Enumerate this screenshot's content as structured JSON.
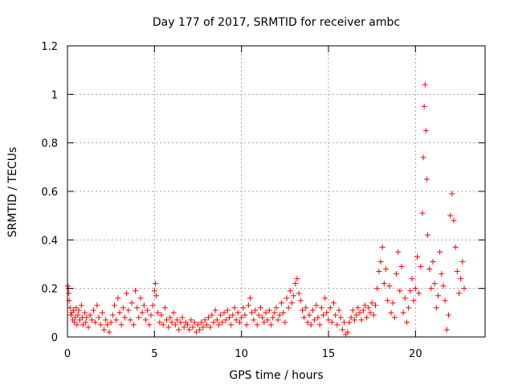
{
  "chart_data": {
    "type": "scatter",
    "title": "Day 177 of 2017, SRMTID for receiver ambc",
    "xlabel": "GPS time / hours",
    "ylabel": "SRMTID / TECUs",
    "xlim": [
      0,
      24
    ],
    "ylim": [
      0,
      1.2
    ],
    "grid": true,
    "marker": "+",
    "color": "#ff0000",
    "xticks": [
      0,
      5,
      10,
      15,
      20
    ],
    "xtick_labels": [
      "0",
      "5",
      "10",
      "15",
      "20"
    ],
    "yticks": [
      0,
      0.2,
      0.4,
      0.6,
      0.8,
      1,
      1.2
    ],
    "ytick_labels": [
      "0",
      "0.2",
      "0.4",
      "0.6",
      "0.8",
      "1",
      "1.2"
    ],
    "series": [
      {
        "name": "SRMTID",
        "points": [
          [
            0.02,
            0.21
          ],
          [
            0.05,
            0.2
          ],
          [
            0.08,
            0.18
          ],
          [
            0.1,
            0.15
          ],
          [
            0.15,
            0.12
          ],
          [
            0.2,
            0.09
          ],
          [
            0.25,
            0.1
          ],
          [
            0.3,
            0.07
          ],
          [
            0.35,
            0.11
          ],
          [
            0.4,
            0.06
          ],
          [
            0.45,
            0.08
          ],
          [
            0.5,
            0.12
          ],
          [
            0.55,
            0.05
          ],
          [
            0.6,
            0.09
          ],
          [
            0.65,
            0.11
          ],
          [
            0.7,
            0.07
          ],
          [
            0.8,
            0.13
          ],
          [
            0.85,
            0.08
          ],
          [
            0.9,
            0.05
          ],
          [
            1.0,
            0.1
          ],
          [
            1.05,
            0.06
          ],
          [
            1.1,
            0.08
          ],
          [
            1.2,
            0.04
          ],
          [
            1.3,
            0.09
          ],
          [
            1.4,
            0.07
          ],
          [
            1.5,
            0.11
          ],
          [
            1.6,
            0.06
          ],
          [
            1.7,
            0.13
          ],
          [
            1.8,
            0.08
          ],
          [
            1.9,
            0.05
          ],
          [
            2.0,
            0.1
          ],
          [
            2.1,
            0.03
          ],
          [
            2.2,
            0.07
          ],
          [
            2.3,
            0.05
          ],
          [
            2.4,
            0.02
          ],
          [
            2.5,
            0.06
          ],
          [
            2.6,
            0.09
          ],
          [
            2.7,
            0.13
          ],
          [
            2.8,
            0.07
          ],
          [
            2.9,
            0.16
          ],
          [
            3.0,
            0.1
          ],
          [
            3.1,
            0.05
          ],
          [
            3.2,
            0.12
          ],
          [
            3.3,
            0.08
          ],
          [
            3.4,
            0.18
          ],
          [
            3.5,
            0.11
          ],
          [
            3.6,
            0.07
          ],
          [
            3.7,
            0.14
          ],
          [
            3.8,
            0.05
          ],
          [
            3.9,
            0.19
          ],
          [
            4.0,
            0.12
          ],
          [
            4.1,
            0.08
          ],
          [
            4.2,
            0.16
          ],
          [
            4.3,
            0.1
          ],
          [
            4.4,
            0.13
          ],
          [
            4.5,
            0.07
          ],
          [
            4.6,
            0.11
          ],
          [
            4.7,
            0.05
          ],
          [
            4.8,
            0.09
          ],
          [
            4.9,
            0.13
          ],
          [
            5.0,
            0.19
          ],
          [
            5.05,
            0.22
          ],
          [
            5.1,
            0.17
          ],
          [
            5.2,
            0.1
          ],
          [
            5.3,
            0.06
          ],
          [
            5.4,
            0.09
          ],
          [
            5.5,
            0.05
          ],
          [
            5.6,
            0.12
          ],
          [
            5.7,
            0.07
          ],
          [
            5.8,
            0.04
          ],
          [
            5.9,
            0.08
          ],
          [
            6.0,
            0.06
          ],
          [
            6.1,
            0.1
          ],
          [
            6.2,
            0.05
          ],
          [
            6.3,
            0.07
          ],
          [
            6.4,
            0.03
          ],
          [
            6.5,
            0.06
          ],
          [
            6.6,
            0.08
          ],
          [
            6.7,
            0.04
          ],
          [
            6.8,
            0.06
          ],
          [
            6.9,
            0.05
          ],
          [
            7.0,
            0.03
          ],
          [
            7.1,
            0.07
          ],
          [
            7.2,
            0.04
          ],
          [
            7.3,
            0.06
          ],
          [
            7.4,
            0.02
          ],
          [
            7.5,
            0.05
          ],
          [
            7.6,
            0.03
          ],
          [
            7.7,
            0.06
          ],
          [
            7.8,
            0.04
          ],
          [
            7.9,
            0.07
          ],
          [
            8.0,
            0.05
          ],
          [
            8.1,
            0.08
          ],
          [
            8.2,
            0.04
          ],
          [
            8.3,
            0.09
          ],
          [
            8.4,
            0.06
          ],
          [
            8.5,
            0.11
          ],
          [
            8.6,
            0.07
          ],
          [
            8.7,
            0.05
          ],
          [
            8.8,
            0.09
          ],
          [
            8.9,
            0.06
          ],
          [
            9.0,
            0.1
          ],
          [
            9.1,
            0.07
          ],
          [
            9.2,
            0.11
          ],
          [
            9.3,
            0.08
          ],
          [
            9.4,
            0.05
          ],
          [
            9.5,
            0.09
          ],
          [
            9.6,
            0.12
          ],
          [
            9.7,
            0.07
          ],
          [
            9.8,
            0.1
          ],
          [
            9.9,
            0.06
          ],
          [
            10.0,
            0.08
          ],
          [
            10.1,
            0.12
          ],
          [
            10.2,
            0.09
          ],
          [
            10.3,
            0.05
          ],
          [
            10.4,
            0.13
          ],
          [
            10.5,
            0.16
          ],
          [
            10.6,
            0.1
          ],
          [
            10.7,
            0.07
          ],
          [
            10.8,
            0.11
          ],
          [
            10.9,
            0.05
          ],
          [
            11.0,
            0.09
          ],
          [
            11.1,
            0.12
          ],
          [
            11.2,
            0.08
          ],
          [
            11.3,
            0.06
          ],
          [
            11.4,
            0.1
          ],
          [
            11.5,
            0.07
          ],
          [
            11.6,
            0.11
          ],
          [
            11.7,
            0.05
          ],
          [
            11.8,
            0.08
          ],
          [
            11.9,
            0.1
          ],
          [
            12.0,
            0.12
          ],
          [
            12.1,
            0.07
          ],
          [
            12.2,
            0.09
          ],
          [
            12.3,
            0.14
          ],
          [
            12.4,
            0.1
          ],
          [
            12.5,
            0.06
          ],
          [
            12.6,
            0.16
          ],
          [
            12.7,
            0.12
          ],
          [
            12.8,
            0.19
          ],
          [
            12.9,
            0.14
          ],
          [
            13.0,
            0.17
          ],
          [
            13.1,
            0.22
          ],
          [
            13.2,
            0.24
          ],
          [
            13.3,
            0.18
          ],
          [
            13.4,
            0.15
          ],
          [
            13.5,
            0.11
          ],
          [
            13.6,
            0.08
          ],
          [
            13.7,
            0.12
          ],
          [
            13.8,
            0.06
          ],
          [
            13.9,
            0.09
          ],
          [
            14.0,
            0.05
          ],
          [
            14.1,
            0.11
          ],
          [
            14.2,
            0.07
          ],
          [
            14.3,
            0.13
          ],
          [
            14.4,
            0.08
          ],
          [
            14.5,
            0.05
          ],
          [
            14.6,
            0.12
          ],
          [
            14.7,
            0.09
          ],
          [
            14.8,
            0.16
          ],
          [
            14.9,
            0.1
          ],
          [
            15.0,
            0.07
          ],
          [
            15.1,
            0.12
          ],
          [
            15.2,
            0.06
          ],
          [
            15.3,
            0.14
          ],
          [
            15.4,
            0.09
          ],
          [
            15.5,
            0.05
          ],
          [
            15.6,
            0.11
          ],
          [
            15.7,
            0.08
          ],
          [
            15.8,
            0.03
          ],
          [
            15.9,
            0.06
          ],
          [
            16.0,
            0.01
          ],
          [
            16.1,
            0.02
          ],
          [
            16.2,
            0.06
          ],
          [
            16.3,
            0.08
          ],
          [
            16.4,
            0.11
          ],
          [
            16.5,
            0.07
          ],
          [
            16.6,
            0.09
          ],
          [
            16.7,
            0.12
          ],
          [
            16.8,
            0.1
          ],
          [
            16.9,
            0.07
          ],
          [
            17.0,
            0.11
          ],
          [
            17.1,
            0.13
          ],
          [
            17.2,
            0.08
          ],
          [
            17.3,
            0.12
          ],
          [
            17.4,
            0.1
          ],
          [
            17.5,
            0.14
          ],
          [
            17.6,
            0.09
          ],
          [
            17.7,
            0.13
          ],
          [
            17.8,
            0.2
          ],
          [
            17.9,
            0.27
          ],
          [
            18.0,
            0.31
          ],
          [
            18.1,
            0.37
          ],
          [
            18.2,
            0.22
          ],
          [
            18.3,
            0.28
          ],
          [
            18.4,
            0.15
          ],
          [
            18.5,
            0.21
          ],
          [
            18.6,
            0.1
          ],
          [
            18.7,
            0.14
          ],
          [
            18.8,
            0.08
          ],
          [
            18.9,
            0.26
          ],
          [
            19.0,
            0.35
          ],
          [
            19.1,
            0.19
          ],
          [
            19.2,
            0.29
          ],
          [
            19.3,
            0.1
          ],
          [
            19.4,
            0.16
          ],
          [
            19.5,
            0.06
          ],
          [
            19.6,
            0.12
          ],
          [
            19.7,
            0.19
          ],
          [
            19.8,
            0.24
          ],
          [
            19.9,
            0.15
          ],
          [
            20.0,
            0.2
          ],
          [
            20.1,
            0.33
          ],
          [
            20.2,
            0.18
          ],
          [
            20.3,
            0.29
          ],
          [
            20.4,
            0.51
          ],
          [
            20.45,
            0.74
          ],
          [
            20.5,
            0.95
          ],
          [
            20.55,
            1.04
          ],
          [
            20.6,
            0.85
          ],
          [
            20.65,
            0.65
          ],
          [
            20.7,
            0.42
          ],
          [
            20.8,
            0.28
          ],
          [
            20.9,
            0.2
          ],
          [
            21.0,
            0.31
          ],
          [
            21.1,
            0.22
          ],
          [
            21.2,
            0.12
          ],
          [
            21.3,
            0.17
          ],
          [
            21.4,
            0.35
          ],
          [
            21.5,
            0.26
          ],
          [
            21.6,
            0.21
          ],
          [
            21.7,
            0.15
          ],
          [
            21.8,
            0.03
          ],
          [
            21.9,
            0.09
          ],
          [
            22.0,
            0.5
          ],
          [
            22.1,
            0.59
          ],
          [
            22.2,
            0.48
          ],
          [
            22.3,
            0.37
          ],
          [
            22.4,
            0.27
          ],
          [
            22.5,
            0.18
          ],
          [
            22.6,
            0.24
          ],
          [
            22.7,
            0.31
          ],
          [
            22.8,
            0.2
          ]
        ]
      }
    ]
  }
}
